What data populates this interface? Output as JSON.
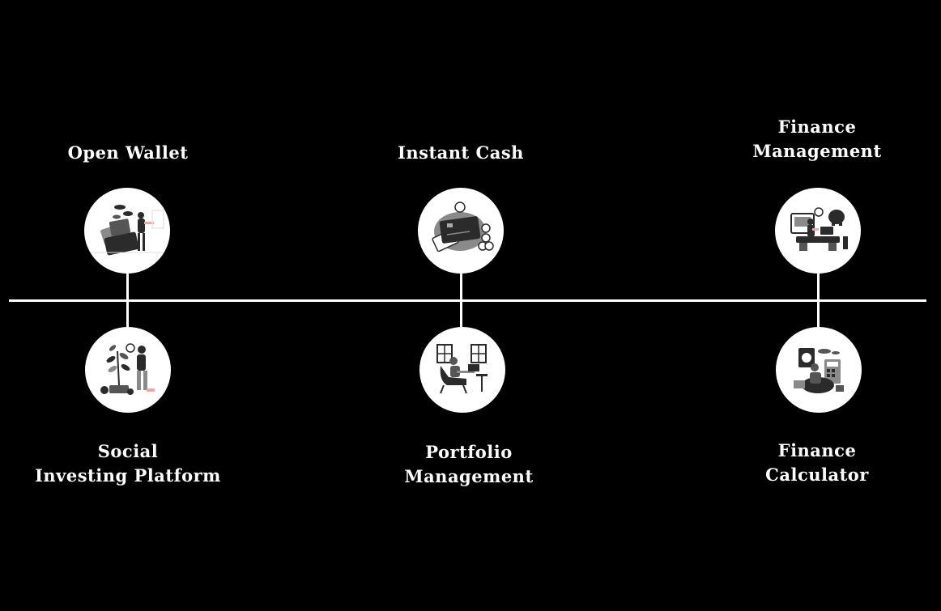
{
  "colors": {
    "background": "#000000",
    "line": "#ffffff",
    "node_fill": "#ffffff",
    "illustration_dark": "#2b2b2b",
    "illustration_mid": "#8a8a8a",
    "illustration_accent": "#f2a6a6"
  },
  "top_items": [
    {
      "lines": [
        "Open Wallet"
      ],
      "icon": "wallet-illustration-icon"
    },
    {
      "lines": [
        "Instant Cash"
      ],
      "icon": "credit-card-illustration-icon"
    },
    {
      "lines": [
        "Finance",
        "Management"
      ],
      "icon": "desk-finance-illustration-icon"
    }
  ],
  "bottom_items": [
    {
      "lines": [
        "Social",
        "Investing Platform"
      ],
      "icon": "plant-investing-illustration-icon"
    },
    {
      "lines": [
        "Portfolio",
        "Management"
      ],
      "icon": "laptop-chair-illustration-icon"
    },
    {
      "lines": [
        "Finance",
        "Calculator"
      ],
      "icon": "calculator-illustration-icon"
    }
  ]
}
